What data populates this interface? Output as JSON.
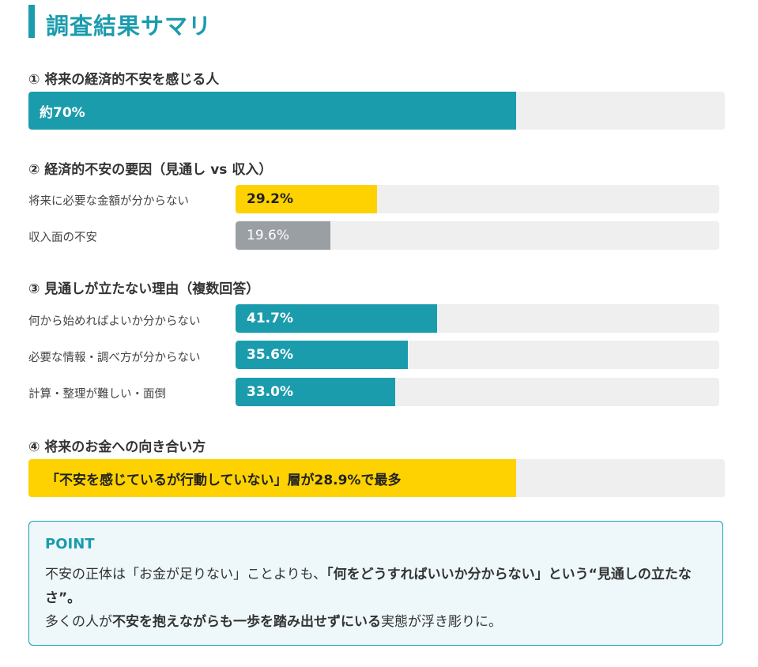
{
  "page_title": "調査結果サマリ",
  "colors": {
    "teal": "#1b9cad",
    "yellow": "#fdd200",
    "gray": "#9a9fa4",
    "track": "#efefef"
  },
  "sections": [
    {
      "heading": "① 将来の経済的不安を感じる人"
    },
    {
      "heading": "② 経済的不安の要因（見通し vs 収入）"
    },
    {
      "heading": "③ 見通しが立たない理由（複数回答）"
    },
    {
      "heading": "④ 将来のお金への向き合い方"
    }
  ],
  "chart_data": [
    {
      "type": "bar",
      "categories": [
        ""
      ],
      "values": [
        70
      ],
      "value_labels": [
        "約70%"
      ],
      "xlim": [
        0,
        100
      ]
    },
    {
      "type": "bar",
      "categories": [
        "将来に必要な金額が分からない",
        "収入面の不安"
      ],
      "values": [
        29.2,
        19.6
      ],
      "value_labels": [
        "29.2%",
        "19.6%"
      ],
      "xlim": [
        0,
        100
      ]
    },
    {
      "type": "bar",
      "categories": [
        "何から始めればよいか分からない",
        "必要な情報・調べ方が分からない",
        "計算・整理が難しい・面倒"
      ],
      "values": [
        41.7,
        35.6,
        33.0
      ],
      "value_labels": [
        "41.7%",
        "35.6%",
        "33.0%"
      ],
      "xlim": [
        0,
        100
      ]
    },
    {
      "type": "bar",
      "categories": [
        ""
      ],
      "values": [
        70
      ],
      "value_labels": [
        "「不安を感じているが行動していない」層が28.9%で最多"
      ],
      "xlim": [
        0,
        100
      ]
    }
  ],
  "point": {
    "title": "POINT",
    "line1_a": "不安の正体は「お金が足りない」ことよりも、",
    "line1_b": "「何をどうすればいいか分からない」",
    "line1_c": "という“見通しの立たなさ”。",
    "line2_a": "多くの人が",
    "line2_b": "不安を抱えながらも一歩を踏み出せずにいる",
    "line2_c": "実態が浮き彫りに。"
  }
}
